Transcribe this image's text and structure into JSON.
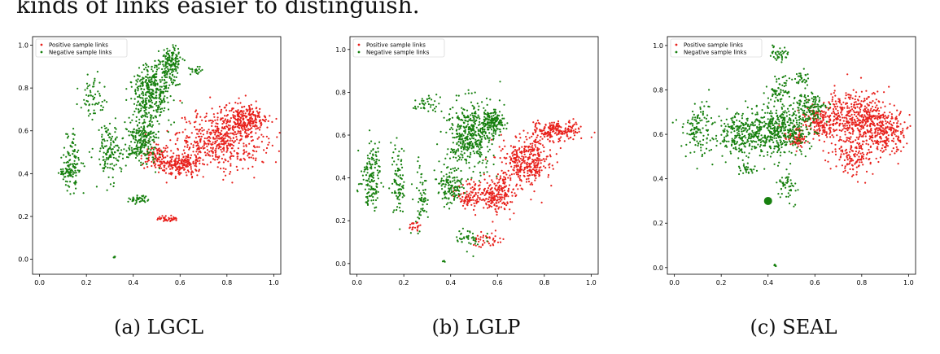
{
  "header_text": "kinds of links easier to distinguish.",
  "colors": {
    "positive": "#e8211c",
    "negative": "#17800f",
    "axis": "#000000"
  },
  "chart_data": [
    {
      "type": "scatter",
      "caption": "(a) LGCL",
      "xlim": [
        -0.03,
        1.03
      ],
      "ylim": [
        -0.07,
        1.04
      ],
      "xticks": [
        "0.0",
        "0.2",
        "0.4",
        "0.6",
        "0.8",
        "1.0"
      ],
      "yticks": [
        "0.0",
        "0.2",
        "0.4",
        "0.6",
        "0.8",
        "1.0"
      ],
      "legend": [
        "Positive sample links",
        "Negative sample links"
      ],
      "legend_position": "top-left",
      "series": [
        {
          "name": "Positive sample links",
          "color": "#e8211c",
          "clusters": [
            {
              "cx": 0.78,
              "cy": 0.56,
              "rx": 0.17,
              "ry": 0.12,
              "n": 520
            },
            {
              "cx": 0.88,
              "cy": 0.66,
              "rx": 0.09,
              "ry": 0.06,
              "n": 220
            },
            {
              "cx": 0.6,
              "cy": 0.44,
              "rx": 0.08,
              "ry": 0.05,
              "n": 200
            },
            {
              "cx": 0.5,
              "cy": 0.48,
              "rx": 0.05,
              "ry": 0.05,
              "n": 90
            },
            {
              "cx": 0.55,
              "cy": 0.19,
              "rx": 0.05,
              "ry": 0.015,
              "n": 40
            }
          ]
        },
        {
          "name": "Negative sample links",
          "color": "#17800f",
          "clusters": [
            {
              "cx": 0.48,
              "cy": 0.78,
              "rx": 0.08,
              "ry": 0.12,
              "n": 380
            },
            {
              "cx": 0.56,
              "cy": 0.92,
              "rx": 0.04,
              "ry": 0.07,
              "n": 140
            },
            {
              "cx": 0.44,
              "cy": 0.55,
              "rx": 0.06,
              "ry": 0.1,
              "n": 240
            },
            {
              "cx": 0.3,
              "cy": 0.5,
              "rx": 0.05,
              "ry": 0.12,
              "n": 140
            },
            {
              "cx": 0.14,
              "cy": 0.45,
              "rx": 0.04,
              "ry": 0.12,
              "n": 110
            },
            {
              "cx": 0.22,
              "cy": 0.76,
              "rx": 0.05,
              "ry": 0.09,
              "n": 60
            },
            {
              "cx": 0.42,
              "cy": 0.28,
              "rx": 0.05,
              "ry": 0.02,
              "n": 40
            },
            {
              "cx": 0.67,
              "cy": 0.88,
              "rx": 0.03,
              "ry": 0.02,
              "n": 20
            },
            {
              "cx": 0.32,
              "cy": 0.01,
              "rx": 0.005,
              "ry": 0.005,
              "n": 5
            },
            {
              "cx": 0.11,
              "cy": 0.4,
              "rx": 0.03,
              "ry": 0.02,
              "n": 30
            }
          ]
        }
      ]
    },
    {
      "type": "scatter",
      "caption": "(b) LGLP",
      "xlim": [
        -0.03,
        1.03
      ],
      "ylim": [
        -0.05,
        1.06
      ],
      "xticks": [
        "0.0",
        "0.2",
        "0.4",
        "0.6",
        "0.8",
        "1.0"
      ],
      "yticks": [
        "0.0",
        "0.2",
        "0.4",
        "0.6",
        "0.8",
        "1.0"
      ],
      "legend": [
        "Positive sample links",
        "Negative sample links"
      ],
      "legend_position": "top-left",
      "series": [
        {
          "name": "Positive sample links",
          "color": "#e8211c",
          "clusters": [
            {
              "cx": 0.72,
              "cy": 0.48,
              "rx": 0.1,
              "ry": 0.1,
              "n": 360
            },
            {
              "cx": 0.85,
              "cy": 0.62,
              "rx": 0.1,
              "ry": 0.04,
              "n": 200
            },
            {
              "cx": 0.6,
              "cy": 0.32,
              "rx": 0.07,
              "ry": 0.07,
              "n": 200
            },
            {
              "cx": 0.48,
              "cy": 0.32,
              "rx": 0.05,
              "ry": 0.06,
              "n": 90
            },
            {
              "cx": 0.55,
              "cy": 0.11,
              "rx": 0.06,
              "ry": 0.03,
              "n": 40
            },
            {
              "cx": 0.25,
              "cy": 0.18,
              "rx": 0.03,
              "ry": 0.02,
              "n": 20
            }
          ]
        },
        {
          "name": "Negative sample links",
          "color": "#17800f",
          "clusters": [
            {
              "cx": 0.48,
              "cy": 0.6,
              "rx": 0.09,
              "ry": 0.14,
              "n": 420
            },
            {
              "cx": 0.58,
              "cy": 0.66,
              "rx": 0.05,
              "ry": 0.05,
              "n": 150
            },
            {
              "cx": 0.4,
              "cy": 0.36,
              "rx": 0.05,
              "ry": 0.08,
              "n": 130
            },
            {
              "cx": 0.06,
              "cy": 0.4,
              "rx": 0.04,
              "ry": 0.14,
              "n": 150
            },
            {
              "cx": 0.18,
              "cy": 0.38,
              "rx": 0.03,
              "ry": 0.16,
              "n": 90
            },
            {
              "cx": 0.27,
              "cy": 0.3,
              "rx": 0.03,
              "ry": 0.13,
              "n": 60
            },
            {
              "cx": 0.3,
              "cy": 0.74,
              "rx": 0.05,
              "ry": 0.04,
              "n": 40
            },
            {
              "cx": 0.48,
              "cy": 0.12,
              "rx": 0.05,
              "ry": 0.04,
              "n": 40
            },
            {
              "cx": 0.37,
              "cy": 0.01,
              "rx": 0.005,
              "ry": 0.005,
              "n": 5
            }
          ]
        }
      ]
    },
    {
      "type": "scatter",
      "caption": "(c) SEAL",
      "xlim": [
        -0.03,
        1.03
      ],
      "ylim": [
        -0.03,
        1.04
      ],
      "xticks": [
        "0.0",
        "0.2",
        "0.4",
        "0.6",
        "0.8",
        "1.0"
      ],
      "yticks": [
        "0.0",
        "0.2",
        "0.4",
        "0.6",
        "0.8",
        "1.0"
      ],
      "legend": [
        "Positive sample links",
        "Negative sample links"
      ],
      "legend_position": "top-left",
      "series": [
        {
          "name": "Positive sample links",
          "color": "#e8211c",
          "clusters": [
            {
              "cx": 0.78,
              "cy": 0.68,
              "rx": 0.14,
              "ry": 0.1,
              "n": 480
            },
            {
              "cx": 0.9,
              "cy": 0.6,
              "rx": 0.08,
              "ry": 0.08,
              "n": 200
            },
            {
              "cx": 0.76,
              "cy": 0.5,
              "rx": 0.08,
              "ry": 0.08,
              "n": 150
            },
            {
              "cx": 0.62,
              "cy": 0.65,
              "rx": 0.06,
              "ry": 0.06,
              "n": 120
            },
            {
              "cx": 0.52,
              "cy": 0.58,
              "rx": 0.05,
              "ry": 0.05,
              "n": 80
            }
          ]
        },
        {
          "name": "Negative sample links",
          "color": "#17800f",
          "clusters": [
            {
              "cx": 0.45,
              "cy": 0.62,
              "rx": 0.13,
              "ry": 0.1,
              "n": 480
            },
            {
              "cx": 0.28,
              "cy": 0.6,
              "rx": 0.1,
              "ry": 0.09,
              "n": 220
            },
            {
              "cx": 0.1,
              "cy": 0.62,
              "rx": 0.06,
              "ry": 0.13,
              "n": 120
            },
            {
              "cx": 0.58,
              "cy": 0.72,
              "rx": 0.06,
              "ry": 0.06,
              "n": 120
            },
            {
              "cx": 0.45,
              "cy": 0.8,
              "rx": 0.05,
              "ry": 0.05,
              "n": 60
            },
            {
              "cx": 0.45,
              "cy": 0.96,
              "rx": 0.04,
              "ry": 0.03,
              "n": 40
            },
            {
              "cx": 0.55,
              "cy": 0.85,
              "rx": 0.04,
              "ry": 0.03,
              "n": 30
            },
            {
              "cx": 0.48,
              "cy": 0.36,
              "rx": 0.04,
              "ry": 0.07,
              "n": 50
            },
            {
              "cx": 0.31,
              "cy": 0.44,
              "rx": 0.04,
              "ry": 0.03,
              "n": 25
            },
            {
              "cx": 0.43,
              "cy": 0.01,
              "rx": 0.005,
              "ry": 0.005,
              "n": 5
            }
          ],
          "markers": [
            {
              "x": 0.4,
              "y": 0.3,
              "size": "large"
            }
          ]
        }
      ]
    }
  ]
}
